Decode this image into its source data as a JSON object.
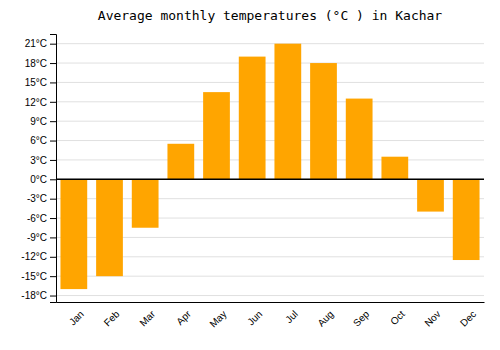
{
  "chart_data": {
    "type": "bar",
    "title": "Average monthly temperatures (°C ) in Kachar",
    "categories": [
      "Jan",
      "Feb",
      "Mar",
      "Apr",
      "May",
      "Jun",
      "Jul",
      "Aug",
      "Sep",
      "Oct",
      "Nov",
      "Dec"
    ],
    "values": [
      -17,
      -15,
      -7.5,
      5.5,
      13.5,
      19,
      21,
      18,
      12.5,
      3.5,
      -5,
      -12.5
    ],
    "color": "#FFA500",
    "ylim": [
      -19,
      22.5
    ],
    "yticks": [
      {
        "value": -18,
        "label": "-18°C"
      },
      {
        "value": -15,
        "label": "-15°C"
      },
      {
        "value": -12,
        "label": "-12°C"
      },
      {
        "value": -9,
        "label": "-9°C"
      },
      {
        "value": -6,
        "label": "-6°C"
      },
      {
        "value": -3,
        "label": "-3°C"
      },
      {
        "value": 0,
        "label": "0°C"
      },
      {
        "value": 3,
        "label": "3°C"
      },
      {
        "value": 6,
        "label": "6°C"
      },
      {
        "value": 9,
        "label": "9°C"
      },
      {
        "value": 12,
        "label": "12°C"
      },
      {
        "value": 15,
        "label": "15°C"
      },
      {
        "value": 18,
        "label": "18°C"
      },
      {
        "value": 21,
        "label": "21°C"
      }
    ],
    "grid": true
  }
}
